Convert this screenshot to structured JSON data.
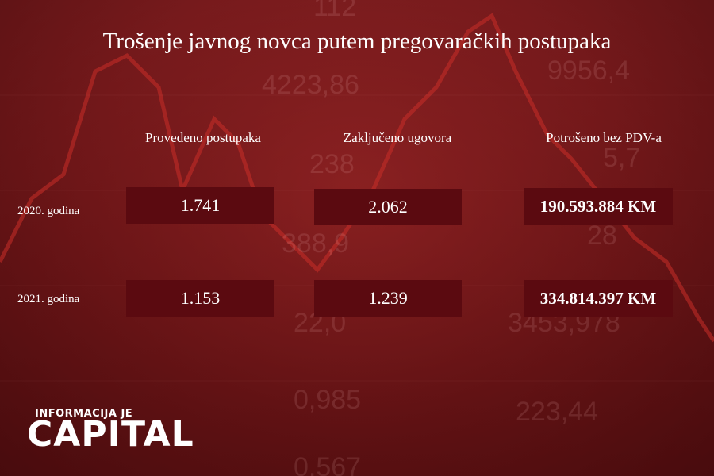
{
  "title": "Trošenje javnog novca putem pregovaračkih postupaka",
  "columns": [
    "Provedeno postupaka",
    "Zaključeno ugovora",
    "Potrošeno bez PDV-a"
  ],
  "rows": [
    {
      "label": "2020. godina",
      "values": [
        "1.741",
        "2.062",
        "190.593.884 KM"
      ]
    },
    {
      "label": "2021. godina",
      "values": [
        "1.153",
        "1.239",
        "334.814.397 KM"
      ]
    }
  ],
  "logo": {
    "top": "INFORMACIJA JE",
    "main": "CAPITAL"
  },
  "background_numbers": [
    "112",
    "4223,86",
    "9956,4",
    "238",
    "388,9",
    "22,0",
    "3453,978",
    "0,985",
    "223,44",
    "0,567",
    "28",
    "5,7"
  ],
  "colors": {
    "background": "#6b1517",
    "cell": "#5b0a10",
    "text": "#ffffff",
    "line": "#c0302c"
  }
}
